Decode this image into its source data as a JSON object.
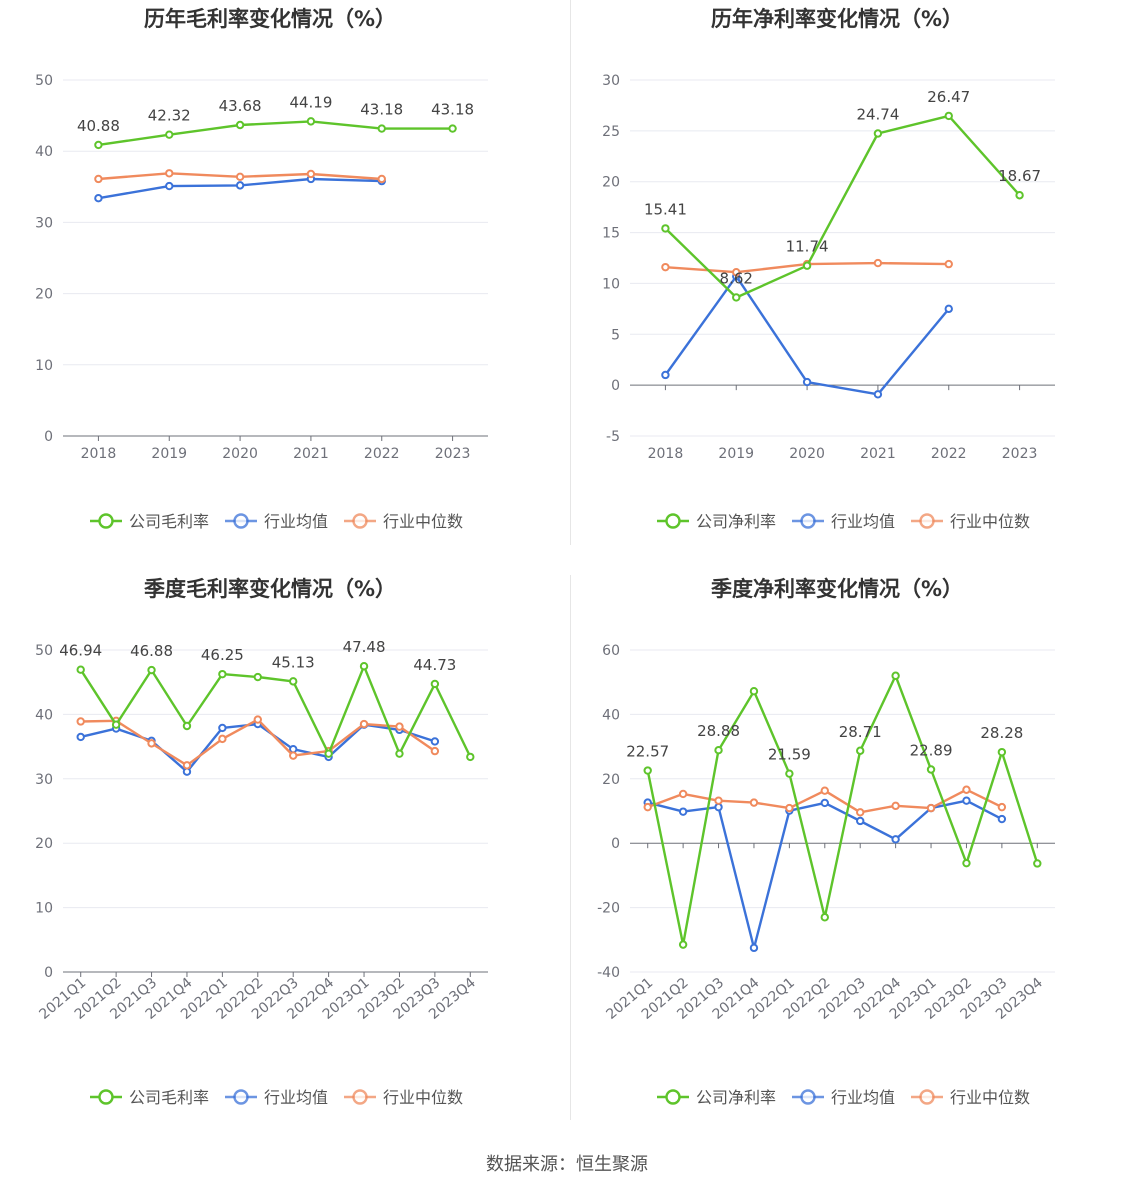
{
  "source_text": "数据来源：恒生聚源",
  "colors": {
    "company": "#5ec42b",
    "average": "#3b72d9",
    "median": "#f08a5d",
    "grid": "#e8eaf0",
    "axis": "#6e7079"
  },
  "chart_data": [
    {
      "type": "line",
      "title": "历年毛利率变化情况（%）",
      "categories": [
        "2018",
        "2019",
        "2020",
        "2021",
        "2022",
        "2023"
      ],
      "ylim": [
        0,
        50
      ],
      "yticks": [
        0,
        10,
        20,
        30,
        40,
        50
      ],
      "grid": true,
      "legend": "bottom",
      "series": [
        {
          "name": "公司毛利率",
          "role": "company",
          "values": [
            40.88,
            42.32,
            43.68,
            44.19,
            43.18,
            43.18
          ],
          "labels": [
            "40.88",
            "42.32",
            "43.68",
            "44.19",
            "43.18",
            "43.18"
          ]
        },
        {
          "name": "行业均值",
          "role": "average",
          "values": [
            33.4,
            35.1,
            35.2,
            36.1,
            35.8,
            null
          ]
        },
        {
          "name": "行业中位数",
          "role": "median",
          "values": [
            36.1,
            36.9,
            36.4,
            36.8,
            36.1,
            null
          ]
        }
      ]
    },
    {
      "type": "line",
      "title": "历年净利率变化情况（%）",
      "categories": [
        "2018",
        "2019",
        "2020",
        "2021",
        "2022",
        "2023"
      ],
      "ylim": [
        -5,
        30
      ],
      "yticks": [
        -5,
        0,
        5,
        10,
        15,
        20,
        25,
        30
      ],
      "grid": true,
      "legend": "bottom",
      "series": [
        {
          "name": "公司净利率",
          "role": "company",
          "values": [
            15.41,
            8.62,
            11.74,
            24.74,
            26.47,
            18.67
          ],
          "labels": [
            "15.41",
            "8.62",
            "11.74",
            "24.74",
            "26.47",
            "18.67"
          ]
        },
        {
          "name": "行业均值",
          "role": "average",
          "values": [
            1.0,
            10.7,
            0.3,
            -0.9,
            7.5,
            null
          ]
        },
        {
          "name": "行业中位数",
          "role": "median",
          "values": [
            11.6,
            11.1,
            11.9,
            12.0,
            11.9,
            null
          ]
        }
      ]
    },
    {
      "type": "line",
      "title": "季度毛利率变化情况（%）",
      "categories": [
        "2021Q1",
        "2021Q2",
        "2021Q3",
        "2021Q4",
        "2022Q1",
        "2022Q2",
        "2022Q3",
        "2022Q4",
        "2023Q1",
        "2023Q2",
        "2023Q3",
        "2023Q4"
      ],
      "ylim": [
        0,
        50
      ],
      "yticks": [
        0,
        10,
        20,
        30,
        40,
        50
      ],
      "grid": true,
      "legend": "bottom",
      "series": [
        {
          "name": "公司毛利率",
          "role": "company",
          "values": [
            46.94,
            38.4,
            46.88,
            38.2,
            46.25,
            45.8,
            45.13,
            33.9,
            47.48,
            33.9,
            44.73,
            33.4
          ],
          "labels": [
            "46.94",
            null,
            "46.88",
            null,
            "46.25",
            null,
            "45.13",
            null,
            "47.48",
            null,
            "44.73",
            null
          ]
        },
        {
          "name": "行业均值",
          "role": "average",
          "values": [
            36.5,
            37.8,
            35.9,
            31.1,
            37.9,
            38.5,
            34.6,
            33.4,
            38.4,
            37.6,
            35.8,
            null
          ]
        },
        {
          "name": "行业中位数",
          "role": "median",
          "values": [
            38.9,
            39.0,
            35.5,
            32.1,
            36.2,
            39.2,
            33.6,
            34.3,
            38.5,
            38.1,
            34.3,
            null
          ]
        }
      ]
    },
    {
      "type": "line",
      "title": "季度净利率变化情况（%）",
      "categories": [
        "2021Q1",
        "2021Q2",
        "2021Q3",
        "2021Q4",
        "2022Q1",
        "2022Q2",
        "2022Q3",
        "2022Q4",
        "2023Q1",
        "2023Q2",
        "2023Q3",
        "2023Q4"
      ],
      "ylim": [
        -40,
        60
      ],
      "yticks": [
        -40,
        -20,
        0,
        20,
        40,
        60
      ],
      "grid": true,
      "legend": "bottom",
      "series": [
        {
          "name": "公司净利率",
          "role": "company",
          "values": [
            22.57,
            -31.5,
            28.88,
            47.2,
            21.59,
            -23.0,
            28.71,
            52.0,
            22.89,
            -6.2,
            28.28,
            -6.3
          ],
          "labels": [
            "22.57",
            null,
            "28.88",
            null,
            "21.59",
            null,
            "28.71",
            null,
            "22.89",
            null,
            "28.28",
            null
          ]
        },
        {
          "name": "行业均值",
          "role": "average",
          "values": [
            12.6,
            9.8,
            11.2,
            -32.5,
            10.1,
            12.5,
            6.9,
            1.2,
            10.9,
            13.2,
            7.5,
            null
          ]
        },
        {
          "name": "行业中位数",
          "role": "median",
          "values": [
            11.2,
            15.3,
            13.2,
            12.6,
            10.9,
            16.3,
            9.6,
            11.6,
            10.9,
            16.6,
            11.2,
            null
          ]
        }
      ]
    }
  ]
}
